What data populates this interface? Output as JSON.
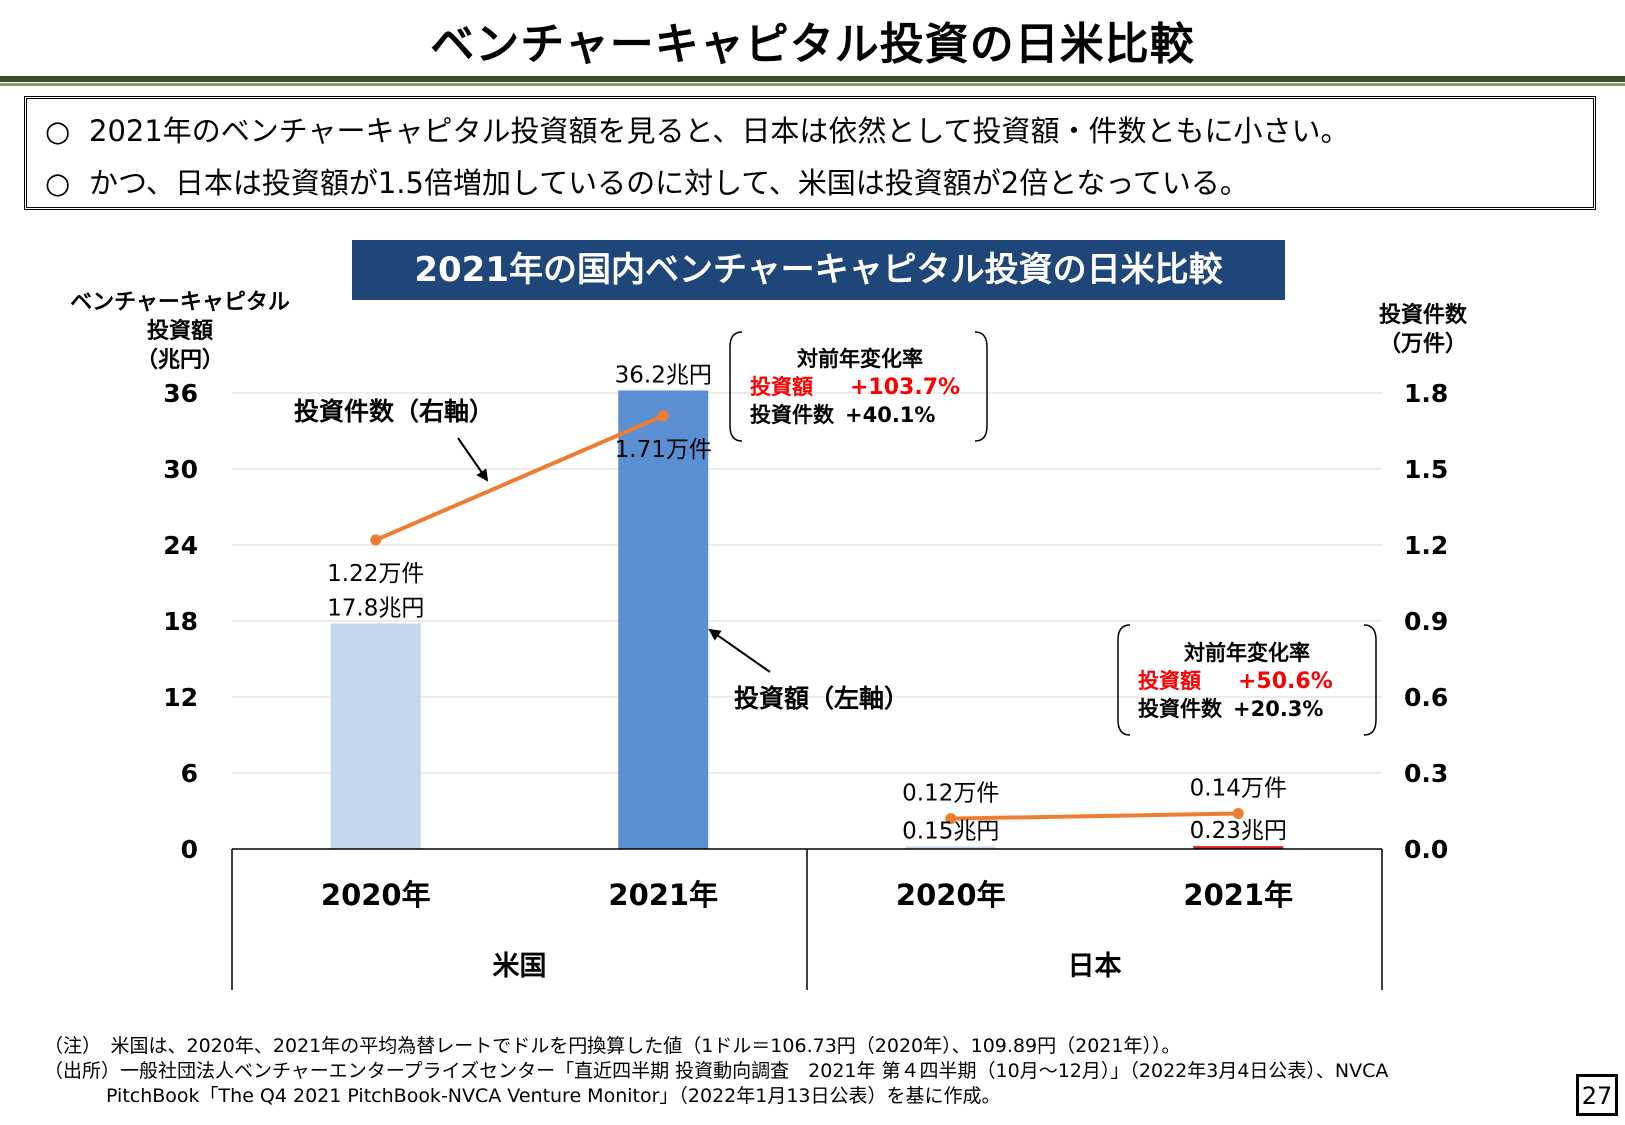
{
  "page": {
    "title": "ベンチャーキャピタル投資の日米比較",
    "page_number": "27"
  },
  "summary": {
    "bullet": "○",
    "lines": [
      "2021年のベンチャーキャピタル投資額を見ると、日本は依然として投資額・件数ともに小さい。",
      "かつ、日本は投資額が1.5倍増加しているのに対して、米国は投資額が2倍となっている。"
    ]
  },
  "chart_data": {
    "type": "bar",
    "title": "2021年の国内ベンチャーキャピタル投資の日米比較",
    "ylabel_left": [
      "ベンチャーキャピタル",
      "投資額",
      "（兆円）"
    ],
    "ylabel_right": [
      "投資件数",
      "（万件）"
    ],
    "ylim_left": [
      0,
      36
    ],
    "ylim_right": [
      0,
      1.8
    ],
    "yticks_left": [
      "0",
      "6",
      "12",
      "18",
      "24",
      "30",
      "36"
    ],
    "yticks_right": [
      "0.0",
      "0.3",
      "0.6",
      "0.9",
      "1.2",
      "1.5",
      "1.8"
    ],
    "grid": true,
    "groups": [
      {
        "name": "米国",
        "categories": [
          "2020年",
          "2021年"
        ],
        "bar_values": [
          17.8,
          36.2
        ],
        "bar_labels": [
          "17.8兆円",
          "36.2兆円"
        ],
        "bar_colors": [
          "#c5d7ee",
          "#5b8fd4"
        ],
        "line_values": [
          1.22,
          1.71
        ],
        "line_labels": [
          "1.22万件",
          "1.71万件"
        ]
      },
      {
        "name": "日本",
        "categories": [
          "2020年",
          "2021年"
        ],
        "bar_values": [
          0.15,
          0.23
        ],
        "bar_labels": [
          "0.15兆円",
          "0.23兆円"
        ],
        "bar_colors": [
          "#c5d7ee",
          "#e02020"
        ],
        "line_values": [
          0.12,
          0.14
        ],
        "line_labels": [
          "0.12万件",
          "0.14万件"
        ]
      }
    ],
    "series": [
      {
        "name": "投資額（左軸）",
        "type": "bar",
        "axis": "left"
      },
      {
        "name": "投資件数（右軸）",
        "type": "line",
        "axis": "right",
        "color": "#ed7d31"
      }
    ],
    "annotations": [
      {
        "heading": "対前年変化率",
        "investment_label": "投資額",
        "investment_change": "+103.7%",
        "count_label": "投資件数",
        "count_change": "+40.1%"
      },
      {
        "heading": "対前年変化率",
        "investment_label": "投資額",
        "investment_change": "+50.6%",
        "count_label": "投資件数",
        "count_change": "+20.3%"
      }
    ],
    "highlight_color": "#ff0000"
  },
  "footnotes": [
    "（注）　米国は、2020年、2021年の平均為替レートでドルを円換算した値（1ドル＝106.73円（2020年）、109.89円（2021年））。",
    "（出所）一般社団法人ベンチャーエンタープライズセンター「直近四半期 投資動向調査　2021年 第４四半期（10月～12月）」（2022年3月4日公表）、NVCA",
    "PitchBook「The Q4 2021 PitchBook-NVCA Venture Monitor」（2022年1月13日公表）を基に作成。"
  ]
}
